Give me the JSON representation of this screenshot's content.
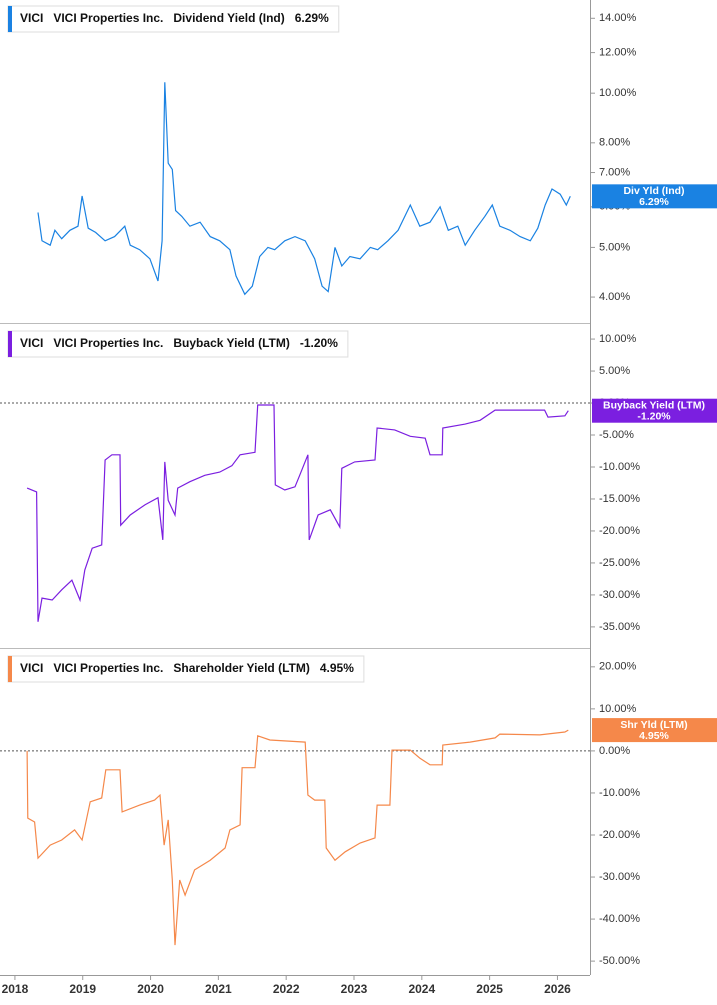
{
  "chart_data": [
    {
      "type": "line",
      "ticker": "VICI",
      "company": "VICI Properties Inc.",
      "title": "Dividend Yield (Ind)",
      "badge": "Div Yld (Ind)",
      "last_value": 6.29,
      "last_value_label": "6.29%",
      "color": "#1a82e2",
      "log_scale": true,
      "xlim": [
        2017.78,
        2026.48
      ],
      "ylim": [
        3.56,
        15.2
      ],
      "yticks": [
        {
          "value": 14,
          "label": "14.00%"
        },
        {
          "value": 12,
          "label": "12.00%"
        },
        {
          "value": 10,
          "label": "10.00%"
        },
        {
          "value": 8,
          "label": "8.00%"
        },
        {
          "value": 7,
          "label": "7.00%"
        },
        {
          "value": 6,
          "label": "6.00%"
        },
        {
          "value": 5,
          "label": "5.00%"
        },
        {
          "value": 4,
          "label": "4.00%"
        }
      ],
      "x": [
        2018.34,
        2018.4,
        2018.52,
        2018.59,
        2018.69,
        2018.81,
        2018.93,
        2018.99,
        2019.08,
        2019.19,
        2019.33,
        2019.47,
        2019.62,
        2019.7,
        2019.84,
        2019.99,
        2020.11,
        2020.17,
        2020.21,
        2020.26,
        2020.32,
        2020.37,
        2020.46,
        2020.58,
        2020.73,
        2020.88,
        2021.02,
        2021.17,
        2021.26,
        2021.39,
        2021.5,
        2021.61,
        2021.73,
        2021.83,
        2021.98,
        2022.13,
        2022.28,
        2022.42,
        2022.53,
        2022.62,
        2022.72,
        2022.82,
        2022.94,
        2023.09,
        2023.24,
        2023.35,
        2023.5,
        2023.65,
        2023.83,
        2023.97,
        2024.12,
        2024.27,
        2024.39,
        2024.53,
        2024.64,
        2024.78,
        2024.93,
        2025.04,
        2025.15,
        2025.3,
        2025.45,
        2025.6,
        2025.71,
        2025.82,
        2025.92,
        2026.04,
        2026.13,
        2026.19
      ],
      "values": [
        5.85,
        5.15,
        5.05,
        5.4,
        5.2,
        5.4,
        5.5,
        6.3,
        5.45,
        5.35,
        5.15,
        5.25,
        5.5,
        5.05,
        4.95,
        4.75,
        4.3,
        5.15,
        10.5,
        7.3,
        7.1,
        5.9,
        5.75,
        5.5,
        5.6,
        5.25,
        5.15,
        4.95,
        4.4,
        4.05,
        4.2,
        4.8,
        5.0,
        4.95,
        5.15,
        5.25,
        5.15,
        4.75,
        4.2,
        4.1,
        5.0,
        4.6,
        4.8,
        4.75,
        5.0,
        4.95,
        5.15,
        5.4,
        6.05,
        5.5,
        5.6,
        6.0,
        5.4,
        5.5,
        5.05,
        5.4,
        5.75,
        6.05,
        5.5,
        5.4,
        5.25,
        5.15,
        5.45,
        6.05,
        6.5,
        6.35,
        6.05,
        6.29
      ]
    },
    {
      "type": "line",
      "ticker": "VICI",
      "company": "VICI Properties Inc.",
      "title": "Buyback Yield (LTM)",
      "badge": "Buyback Yield (LTM)",
      "last_value": -1.2,
      "last_value_label": "-1.20%",
      "color": "#7b1fe0",
      "ref_line": 0,
      "xlim": [
        2017.78,
        2026.48
      ],
      "ylim": [
        -38.3,
        12.2
      ],
      "yticks": [
        {
          "value": 10,
          "label": "10.00%"
        },
        {
          "value": 5,
          "label": "5.00%"
        },
        {
          "value": 0,
          "label": "0.00%"
        },
        {
          "value": -5,
          "label": "-5.00%"
        },
        {
          "value": -10,
          "label": "-10.00%"
        },
        {
          "value": -15,
          "label": "-15.00%"
        },
        {
          "value": -20,
          "label": "-20.00%"
        },
        {
          "value": -25,
          "label": "-25.00%"
        },
        {
          "value": -30,
          "label": "-30.00%"
        },
        {
          "value": -35,
          "label": "-35.00%"
        }
      ],
      "x": [
        2018.18,
        2018.32,
        2018.34,
        2018.4,
        2018.55,
        2018.69,
        2018.84,
        2018.96,
        2019.03,
        2019.14,
        2019.28,
        2019.33,
        2019.43,
        2019.55,
        2019.56,
        2019.7,
        2019.92,
        2020.11,
        2020.18,
        2020.21,
        2020.26,
        2020.36,
        2020.4,
        2020.58,
        2020.8,
        2021.02,
        2021.2,
        2021.32,
        2021.54,
        2021.58,
        2021.82,
        2021.84,
        2021.98,
        2022.13,
        2022.2,
        2022.32,
        2022.34,
        2022.47,
        2022.65,
        2022.79,
        2022.82,
        2023.01,
        2023.31,
        2023.34,
        2023.6,
        2023.83,
        2024.05,
        2024.12,
        2024.3,
        2024.31,
        2024.64,
        2024.86,
        2025.08,
        2025.81,
        2025.86,
        2026.11,
        2026.16
      ],
      "values": [
        -13.3,
        -13.9,
        -34.2,
        -30.5,
        -30.8,
        -29.2,
        -27.7,
        -30.8,
        -26.1,
        -22.7,
        -22.2,
        -8.9,
        -8.1,
        -8.1,
        -19.1,
        -17.5,
        -15.9,
        -14.8,
        -21.4,
        -9.2,
        -15.2,
        -17.5,
        -13.3,
        -12.3,
        -11.3,
        -10.8,
        -9.8,
        -8.1,
        -7.7,
        -0.3,
        -0.3,
        -12.8,
        -13.6,
        -13.1,
        -11.3,
        -8.1,
        -21.4,
        -17.5,
        -16.7,
        -19.4,
        -10.2,
        -9.2,
        -8.9,
        -3.9,
        -4.2,
        -5.2,
        -5.5,
        -8.1,
        -8.1,
        -3.9,
        -3.3,
        -2.7,
        -1.1,
        -1.1,
        -2.2,
        -2.0,
        -1.2
      ]
    },
    {
      "type": "line",
      "ticker": "VICI",
      "company": "VICI Properties Inc.",
      "title": "Shareholder Yield (LTM)",
      "badge": "Shr Yld (LTM)",
      "last_value": 4.95,
      "last_value_label": "4.95%",
      "color": "#f5884a",
      "ref_line": 0,
      "xlim": [
        2017.78,
        2026.48
      ],
      "ylim": [
        -53.3,
        24
      ],
      "xticks": [
        2018,
        2019,
        2020,
        2021,
        2022,
        2023,
        2024,
        2025,
        2026
      ],
      "yticks": [
        {
          "value": 20,
          "label": "20.00%"
        },
        {
          "value": 10,
          "label": "10.00%"
        },
        {
          "value": 0,
          "label": "0.00%"
        },
        {
          "value": -10,
          "label": "-10.00%"
        },
        {
          "value": -20,
          "label": "-20.00%"
        },
        {
          "value": -30,
          "label": "-30.00%"
        },
        {
          "value": -40,
          "label": "-40.00%"
        },
        {
          "value": -50,
          "label": "-50.00%"
        }
      ],
      "x": [
        2018.18,
        2018.19,
        2018.29,
        2018.34,
        2018.52,
        2018.69,
        2018.88,
        2018.99,
        2019.11,
        2019.28,
        2019.34,
        2019.55,
        2019.58,
        2019.84,
        2020.06,
        2020.14,
        2020.2,
        2020.26,
        2020.32,
        2020.36,
        2020.43,
        2020.51,
        2020.65,
        2020.88,
        2021.1,
        2021.17,
        2021.32,
        2021.35,
        2021.54,
        2021.58,
        2021.76,
        2022.28,
        2022.32,
        2022.42,
        2022.57,
        2022.59,
        2022.72,
        2022.87,
        2023.09,
        2023.31,
        2023.34,
        2023.53,
        2023.56,
        2023.83,
        2023.97,
        2024.12,
        2024.3,
        2024.31,
        2024.71,
        2025.08,
        2025.15,
        2025.74,
        2026.11,
        2026.16
      ],
      "values": [
        0,
        -16.0,
        -16.9,
        -25.5,
        -22.4,
        -21.2,
        -18.8,
        -21.2,
        -12.1,
        -11.2,
        -4.5,
        -4.5,
        -14.5,
        -12.9,
        -11.7,
        -10.5,
        -22.4,
        -16.4,
        -30.7,
        -46.2,
        -30.7,
        -34.3,
        -28.3,
        -26.0,
        -23.1,
        -18.8,
        -17.6,
        -4.0,
        -4.0,
        3.6,
        2.6,
        2.1,
        -10.5,
        -11.7,
        -11.7,
        -23.1,
        -26.0,
        -24.0,
        -21.9,
        -20.7,
        -12.9,
        -12.9,
        0.2,
        0.2,
        -1.7,
        -3.3,
        -3.3,
        1.4,
        2.1,
        3.1,
        4.0,
        3.8,
        4.5,
        4.95
      ]
    }
  ]
}
